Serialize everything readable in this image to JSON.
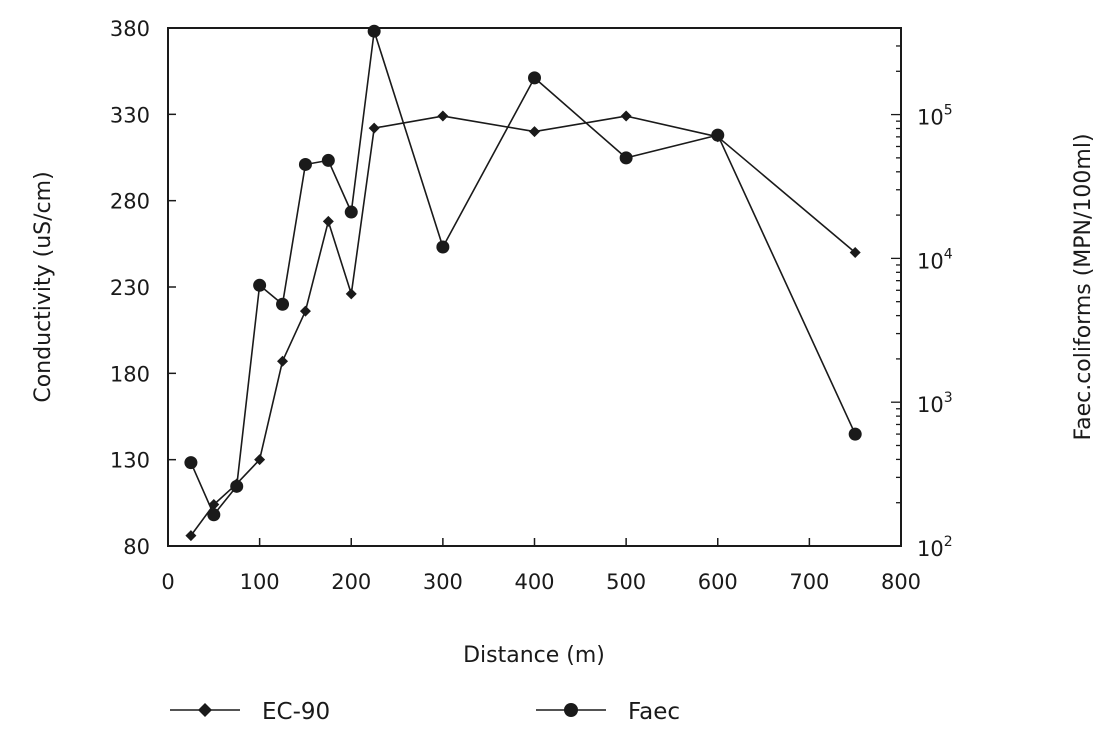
{
  "chart_data": {
    "type": "line",
    "xlabel": "Distance (m)",
    "ylabel": "Conductivity (uS/cm)",
    "y2label": "Faec.coliforms (MPN/100ml)",
    "xlim": [
      0,
      800
    ],
    "ylim": [
      80,
      380
    ],
    "y2lim": [
      100,
      400000
    ],
    "y2scale": "log",
    "grid": false,
    "legend_position": "bottom",
    "x_ticks": [
      "0",
      "100",
      "200",
      "300",
      "400",
      "500",
      "600",
      "700",
      "800"
    ],
    "y_ticks": [
      "80",
      "130",
      "180",
      "230",
      "280",
      "330",
      "380"
    ],
    "y2_ticks": [
      {
        "base": "10",
        "exp": "2",
        "value": 100
      },
      {
        "base": "10",
        "exp": "3",
        "value": 1000
      },
      {
        "base": "10",
        "exp": "4",
        "value": 10000
      },
      {
        "base": "10",
        "exp": "5",
        "value": 100000
      }
    ],
    "series": [
      {
        "name": "EC-90",
        "marker": "diamond",
        "axis": "left",
        "points": [
          [
            25,
            86
          ],
          [
            50,
            104
          ],
          [
            75,
            116
          ],
          [
            100,
            130
          ],
          [
            125,
            187
          ],
          [
            150,
            216
          ],
          [
            175,
            268
          ],
          [
            200,
            226
          ],
          [
            225,
            322
          ],
          [
            300,
            329
          ],
          [
            400,
            320
          ],
          [
            500,
            329
          ],
          [
            600,
            317
          ],
          [
            750,
            250
          ]
        ]
      },
      {
        "name": "Faec",
        "marker": "circle",
        "axis": "right",
        "points": [
          [
            25,
            380
          ],
          [
            50,
            165
          ],
          [
            75,
            260
          ],
          [
            100,
            6500
          ],
          [
            125,
            4800
          ],
          [
            150,
            45000
          ],
          [
            175,
            48000
          ],
          [
            200,
            21000
          ],
          [
            225,
            380000
          ],
          [
            300,
            12000
          ],
          [
            400,
            180000
          ],
          [
            500,
            50000
          ],
          [
            600,
            72000
          ],
          [
            750,
            600
          ]
        ]
      }
    ]
  }
}
